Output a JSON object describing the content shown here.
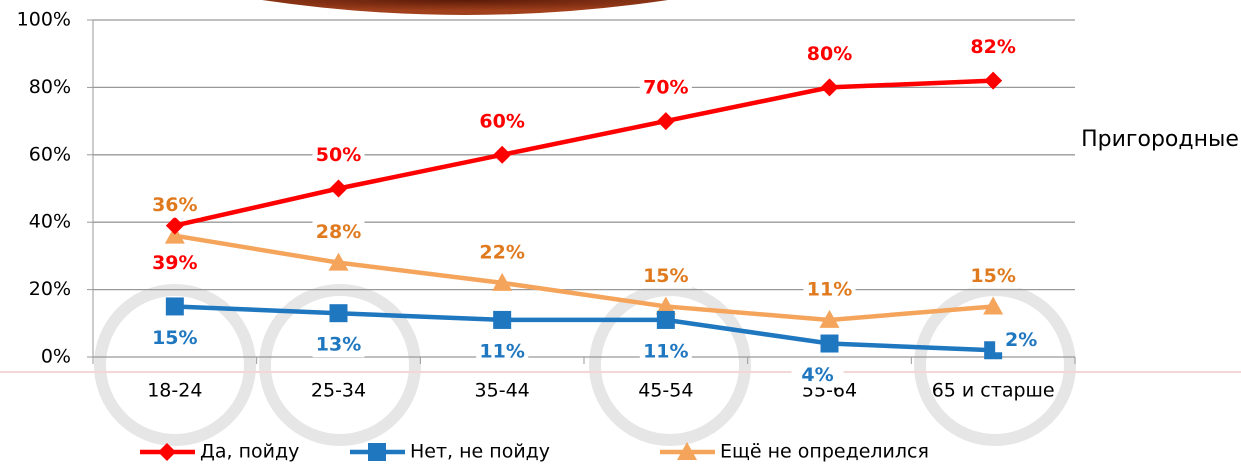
{
  "chart_data": {
    "type": "line",
    "annotation": "Пригородные",
    "categories": [
      "18-24",
      "25-34",
      "35-44",
      "45-54",
      "55-64",
      "65 и старше"
    ],
    "series": [
      {
        "name": "Да, пойду",
        "color": "#ff0000",
        "marker": "diamond",
        "values": [
          39,
          50,
          60,
          70,
          80,
          82
        ],
        "value_labels": [
          "39%",
          "50%",
          "60%",
          "70%",
          "80%",
          "82%"
        ]
      },
      {
        "name": "Нет, не пойду",
        "color": "#1f77c0",
        "marker": "square",
        "values": [
          15,
          13,
          11,
          11,
          4,
          2
        ],
        "value_labels": [
          "15%",
          "13%",
          "11%",
          "11%",
          "4%",
          "2%"
        ]
      },
      {
        "name": "Ещё не определился",
        "color": "#f5a45c",
        "label_color": "#e07a1f",
        "marker": "triangle",
        "values": [
          36,
          28,
          22,
          15,
          11,
          15
        ],
        "value_labels": [
          "36%",
          "28%",
          "22%",
          "15%",
          "11%",
          "15%"
        ]
      }
    ],
    "ylim": [
      0,
      100
    ],
    "yticks": [
      {
        "value": 0,
        "label": "0%"
      },
      {
        "value": 20,
        "label": "20%"
      },
      {
        "value": 40,
        "label": "40%"
      },
      {
        "value": 60,
        "label": "60%"
      },
      {
        "value": 80,
        "label": "80%"
      },
      {
        "value": 100,
        "label": "100%"
      }
    ],
    "grid": true,
    "legend": "bottom"
  }
}
